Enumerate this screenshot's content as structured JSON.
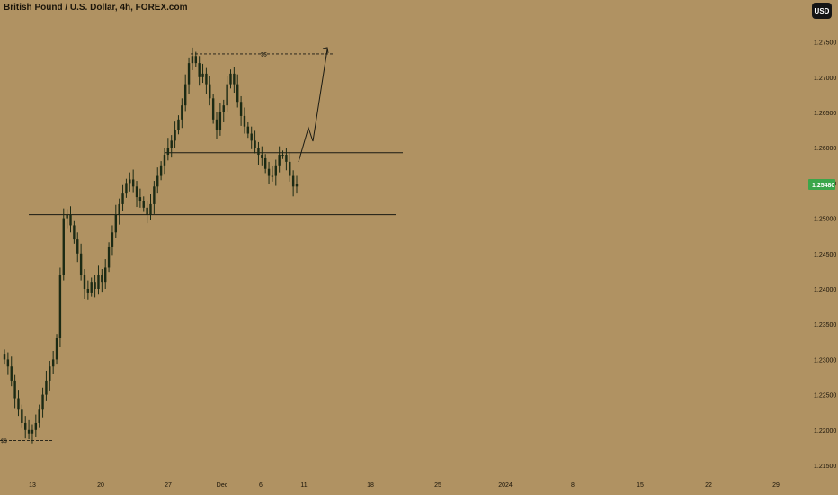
{
  "header": {
    "title": "British Pound / U.S. Dollar, 4h, FOREX.com",
    "currency_label": "USD"
  },
  "colors": {
    "background": "#b09262",
    "candle": "#1b2a14",
    "line": "#1a1a12",
    "price_label_bg": "#3aa64a",
    "price_label_text": "#ffffff"
  },
  "chart_data": {
    "type": "candlestick",
    "title": "British Pound / U.S. Dollar, 4h, FOREX.com",
    "x_axis": {
      "type": "date",
      "tick_labels": [
        "13",
        "20",
        "27",
        "Dec",
        "6",
        "11",
        "18",
        "25",
        "2024",
        "8",
        "15",
        "22",
        "29"
      ]
    },
    "y_axis": {
      "position": "right",
      "ylim": [
        1.2125,
        1.279
      ],
      "tick_labels": [
        "1.21500",
        "1.22000",
        "1.22500",
        "1.23000",
        "1.23500",
        "1.24000",
        "1.24500",
        "1.25000",
        "1.25500",
        "1.26000",
        "1.26500",
        "1.27000",
        "1.27500"
      ]
    },
    "last_price": "1.25480",
    "closes": [
      1.23,
      1.229,
      1.227,
      1.2245,
      1.223,
      1.221,
      1.22,
      1.2195,
      1.22,
      1.221,
      1.223,
      1.225,
      1.227,
      1.229,
      1.23,
      1.233,
      1.242,
      1.25,
      1.2505,
      1.249,
      1.247,
      1.245,
      1.242,
      1.24,
      1.2395,
      1.241,
      1.24,
      1.242,
      1.241,
      1.243,
      1.246,
      1.248,
      1.2505,
      1.252,
      1.2535,
      1.255,
      1.2555,
      1.2545,
      1.253,
      1.2525,
      1.2515,
      1.2505,
      1.252,
      1.2545,
      1.256,
      1.2575,
      1.259,
      1.26,
      1.261,
      1.2625,
      1.264,
      1.266,
      1.269,
      1.272,
      1.273,
      1.272,
      1.27,
      1.2705,
      1.269,
      1.267,
      1.264,
      1.2625,
      1.265,
      1.266,
      1.269,
      1.2705,
      1.269,
      1.2665,
      1.2645,
      1.263,
      1.262,
      1.261,
      1.26,
      1.259,
      1.2585,
      1.257,
      1.256,
      1.256,
      1.2575,
      1.259,
      1.259,
      1.258,
      1.256,
      1.2545,
      1.2548
    ],
    "annotations": [
      {
        "type": "horizontal_line",
        "price": 1.2505
      },
      {
        "type": "horizontal_line",
        "price": 1.2593
      },
      {
        "type": "dashed_line",
        "price": 1.2733,
        "label": "$$"
      },
      {
        "type": "dashed_line",
        "price": 1.2185,
        "label": "$$"
      },
      {
        "type": "projection_arrow",
        "from_price": 1.2548,
        "to_price": 1.2733
      }
    ],
    "grid": false
  }
}
